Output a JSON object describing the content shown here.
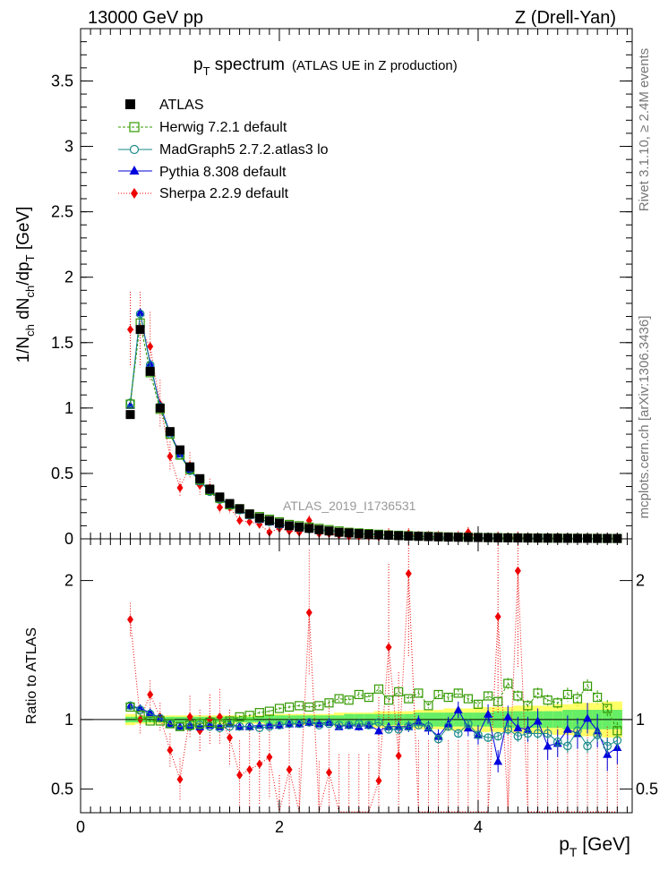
{
  "header": {
    "energy": "13000 GeV pp",
    "process": "Z (Drell-Yan)",
    "title_main": "p",
    "title_sub": "T",
    "title_rest": " spectrum",
    "title_note": "(ATLAS UE in Z production)",
    "analysis": "ATLAS_2019_I1736531",
    "rivet": "Rivet 3.1.10, ≥ 2.4M events",
    "mcplots": "mcplots.cern.ch [arXiv:1306.3436]"
  },
  "colors": {
    "atlas": "#000000",
    "herwig": "#339900",
    "madgraph": "#1a8a8a",
    "pythia": "#0000dd",
    "sherpa": "#ee0000",
    "band_inner": "#66ee66",
    "band_outer": "#ffff66"
  },
  "chart_data": [
    {
      "type": "scatter",
      "panel": "main",
      "ylabel_parts": [
        "1/N",
        "ch",
        " dN",
        "ch",
        "/dp",
        "T",
        " [GeV]"
      ],
      "xlim": [
        0,
        5.55
      ],
      "ylim": [
        0,
        3.9
      ],
      "yticks": [
        0,
        0.5,
        1,
        1.5,
        2,
        2.5,
        3,
        3.5
      ],
      "ytick_labels": [
        "0",
        "0.5",
        "1",
        "1.5",
        "2",
        "2.5",
        "3",
        "3.5"
      ],
      "x": [
        0.5,
        0.6,
        0.7,
        0.8,
        0.9,
        1.0,
        1.1,
        1.2,
        1.3,
        1.4,
        1.5,
        1.6,
        1.7,
        1.8,
        1.9,
        2.0,
        2.1,
        2.2,
        2.3,
        2.4,
        2.5,
        2.6,
        2.7,
        2.8,
        2.9,
        3.0,
        3.1,
        3.2,
        3.3,
        3.4,
        3.5,
        3.6,
        3.7,
        3.8,
        3.9,
        4.0,
        4.1,
        4.2,
        4.3,
        4.4,
        4.5,
        4.6,
        4.7,
        4.8,
        4.9,
        5.0,
        5.1,
        5.2,
        5.3,
        5.4
      ],
      "series": [
        {
          "name": "ATLAS",
          "key": "atlas",
          "values": [
            0.95,
            1.6,
            1.28,
            1.0,
            0.82,
            0.68,
            0.55,
            0.46,
            0.38,
            0.32,
            0.27,
            0.23,
            0.19,
            0.16,
            0.14,
            0.12,
            0.1,
            0.09,
            0.08,
            0.07,
            0.06,
            0.05,
            0.045,
            0.04,
            0.035,
            0.03,
            0.027,
            0.024,
            0.021,
            0.019,
            0.017,
            0.015,
            0.013,
            0.012,
            0.011,
            0.01,
            0.009,
            0.008,
            0.007,
            0.0065,
            0.006,
            0.0055,
            0.005,
            0.0045,
            0.004,
            0.0037,
            0.0034,
            0.003,
            0.0028,
            0.0025
          ]
        },
        {
          "name": "Herwig 7.2.1 default",
          "key": "herwig",
          "values": [
            1.03,
            1.65,
            1.27,
            0.99,
            0.8,
            0.64,
            0.53,
            0.45,
            0.37,
            0.31,
            0.26,
            0.23,
            0.19,
            0.17,
            0.15,
            0.13,
            0.11,
            0.1,
            0.09,
            0.08,
            0.07,
            0.06,
            0.05,
            0.045,
            0.04,
            0.035,
            0.03,
            0.027,
            0.024,
            0.021,
            0.019,
            0.017,
            0.015,
            0.014,
            0.012,
            0.011,
            0.01,
            0.009,
            0.008,
            0.0075,
            0.007,
            0.0065,
            0.006,
            0.0055,
            0.005,
            0.0045,
            0.004,
            0.0036,
            0.0032,
            0.003
          ]
        },
        {
          "name": "MadGraph5 2.7.2.atlas3 lo",
          "key": "madgraph",
          "values": [
            1.04,
            1.72,
            1.33,
            1.01,
            0.8,
            0.64,
            0.52,
            0.44,
            0.36,
            0.3,
            0.26,
            0.22,
            0.18,
            0.15,
            0.13,
            0.11,
            0.095,
            0.085,
            0.075,
            0.066,
            0.058,
            0.05,
            0.044,
            0.039,
            0.034,
            0.029,
            0.026,
            0.023,
            0.02,
            0.018,
            0.016,
            0.013,
            0.012,
            0.011,
            0.01,
            0.0095,
            0.008,
            0.007,
            0.006,
            0.0055,
            0.005,
            0.0047,
            0.0043,
            0.004,
            0.0037,
            0.0033,
            0.003,
            0.0027,
            0.0025,
            0.0022
          ]
        },
        {
          "name": "Pythia 8.308 default",
          "key": "pythia",
          "values": [
            1.02,
            1.73,
            1.34,
            1.02,
            0.81,
            0.65,
            0.53,
            0.44,
            0.37,
            0.31,
            0.26,
            0.22,
            0.18,
            0.15,
            0.13,
            0.11,
            0.1,
            0.085,
            0.077,
            0.068,
            0.06,
            0.05,
            0.045,
            0.04,
            0.034,
            0.03,
            0.027,
            0.023,
            0.02,
            0.018,
            0.016,
            0.014,
            0.012,
            0.011,
            0.01,
            0.009,
            0.008,
            0.007,
            0.006,
            0.0055,
            0.005,
            0.0047,
            0.0043,
            0.004,
            0.0037,
            0.0033,
            0.003,
            0.0027,
            0.0025,
            0.0022
          ]
        },
        {
          "name": "Sherpa 2.2.9 default",
          "key": "sherpa",
          "values": [
            1.6,
            1.6,
            1.47,
            1.03,
            0.63,
            0.39,
            0.56,
            0.41,
            0.39,
            0.24,
            0.24,
            0.14,
            0.13,
            0.11,
            0.05,
            0.08,
            0.06,
            0.05,
            0.14,
            0.04,
            0.04,
            0.03,
            0.02,
            0.02,
            0.02,
            0.015,
            0.04,
            0.02,
            0.04,
            0.02,
            0.02,
            0.02,
            0.01,
            0.02,
            0.05,
            0.01,
            0.01,
            0.015,
            0.01,
            0.015,
            0.01,
            0.005,
            0.005,
            0.005,
            0.005,
            0.005,
            0.005,
            0.005,
            0.005,
            0.005
          ]
        }
      ]
    },
    {
      "type": "scatter",
      "panel": "ratio",
      "ylabel": "Ratio to ATLAS",
      "xlabel_parts": [
        "p",
        "T",
        " [GeV]"
      ],
      "xlim": [
        0,
        5.55
      ],
      "ylim": [
        0.33,
        2.3
      ],
      "xticks": [
        0,
        2,
        4
      ],
      "xtick_labels": [
        "0",
        "2",
        "4"
      ],
      "yticks": [
        0.5,
        1,
        2
      ],
      "ytick_labels": [
        "0.5",
        "1",
        "2"
      ],
      "reference": 1,
      "x": [
        0.5,
        0.6,
        0.7,
        0.8,
        0.9,
        1.0,
        1.1,
        1.2,
        1.3,
        1.4,
        1.5,
        1.6,
        1.7,
        1.8,
        1.9,
        2.0,
        2.1,
        2.2,
        2.3,
        2.4,
        2.5,
        2.6,
        2.7,
        2.8,
        2.9,
        3.0,
        3.1,
        3.2,
        3.3,
        3.4,
        3.5,
        3.6,
        3.7,
        3.8,
        3.9,
        4.0,
        4.1,
        4.2,
        4.3,
        4.4,
        4.5,
        4.6,
        4.7,
        4.8,
        4.9,
        5.0,
        5.1,
        5.2,
        5.3,
        5.4
      ],
      "band_inner": [
        0.02,
        0.02,
        0.02,
        0.02,
        0.02,
        0.02,
        0.02,
        0.02,
        0.02,
        0.02,
        0.02,
        0.02,
        0.02,
        0.02,
        0.03,
        0.03,
        0.03,
        0.03,
        0.03,
        0.03,
        0.03,
        0.03,
        0.04,
        0.04,
        0.04,
        0.04,
        0.04,
        0.04,
        0.04,
        0.05,
        0.05,
        0.05,
        0.05,
        0.05,
        0.05,
        0.05,
        0.05,
        0.06,
        0.06,
        0.06,
        0.06,
        0.06,
        0.06,
        0.06,
        0.07,
        0.07,
        0.07,
        0.07,
        0.07,
        0.07
      ],
      "band_outer": [
        0.04,
        0.03,
        0.03,
        0.03,
        0.03,
        0.03,
        0.03,
        0.03,
        0.03,
        0.03,
        0.03,
        0.03,
        0.03,
        0.03,
        0.04,
        0.04,
        0.04,
        0.04,
        0.04,
        0.04,
        0.04,
        0.05,
        0.05,
        0.05,
        0.05,
        0.06,
        0.06,
        0.06,
        0.06,
        0.07,
        0.07,
        0.07,
        0.08,
        0.08,
        0.08,
        0.09,
        0.09,
        0.09,
        0.09,
        0.1,
        0.1,
        0.1,
        0.1,
        0.11,
        0.11,
        0.12,
        0.12,
        0.12,
        0.13,
        0.13
      ],
      "series": [
        {
          "name": "Herwig 7.2.1 default",
          "key": "herwig",
          "values": [
            1.09,
            1.03,
            0.99,
            0.99,
            0.97,
            0.95,
            0.96,
            0.97,
            0.98,
            0.97,
            0.99,
            1.02,
            1.03,
            1.05,
            1.06,
            1.08,
            1.09,
            1.1,
            1.09,
            1.1,
            1.12,
            1.15,
            1.14,
            1.18,
            1.16,
            1.22,
            1.14,
            1.2,
            1.15,
            1.19,
            1.1,
            1.18,
            1.16,
            1.19,
            1.15,
            1.11,
            1.17,
            1.13,
            1.26,
            1.17,
            1.1,
            1.19,
            1.14,
            1.12,
            1.18,
            1.15,
            1.24,
            1.16,
            1.08,
            0.92
          ],
          "errors": [
            0.01,
            0.01,
            0.01,
            0.01,
            0.01,
            0.01,
            0.01,
            0.01,
            0.01,
            0.01,
            0.01,
            0.01,
            0.01,
            0.01,
            0.01,
            0.01,
            0.01,
            0.01,
            0.01,
            0.01,
            0.02,
            0.02,
            0.02,
            0.02,
            0.02,
            0.02,
            0.02,
            0.02,
            0.02,
            0.02,
            0.02,
            0.03,
            0.03,
            0.03,
            0.03,
            0.03,
            0.03,
            0.03,
            0.04,
            0.04,
            0.04,
            0.04,
            0.04,
            0.04,
            0.05,
            0.05,
            0.05,
            0.05,
            0.06,
            0.06
          ]
        },
        {
          "name": "MadGraph5 2.7.2.atlas3 lo",
          "key": "madgraph",
          "values": [
            1.1,
            1.07,
            1.04,
            1.01,
            0.97,
            0.95,
            0.95,
            0.96,
            0.95,
            0.94,
            0.95,
            0.95,
            0.95,
            0.94,
            0.95,
            0.96,
            0.97,
            0.97,
            0.98,
            0.96,
            0.97,
            0.96,
            0.96,
            0.97,
            0.96,
            0.98,
            0.93,
            0.93,
            0.95,
            0.96,
            0.95,
            0.86,
            0.95,
            0.9,
            0.97,
            0.89,
            0.87,
            0.88,
            0.93,
            0.88,
            0.9,
            0.9,
            0.9,
            0.84,
            0.81,
            0.92,
            0.81,
            0.89,
            0.81,
            0.85
          ],
          "errors": [
            0.01,
            0.01,
            0.01,
            0.01,
            0.01,
            0.01,
            0.01,
            0.01,
            0.01,
            0.01,
            0.01,
            0.01,
            0.01,
            0.01,
            0.01,
            0.01,
            0.01,
            0.01,
            0.01,
            0.01,
            0.02,
            0.02,
            0.02,
            0.02,
            0.02,
            0.02,
            0.02,
            0.02,
            0.02,
            0.02,
            0.02,
            0.03,
            0.03,
            0.03,
            0.03,
            0.03,
            0.03,
            0.03,
            0.04,
            0.04,
            0.04,
            0.04,
            0.04,
            0.04,
            0.05,
            0.05,
            0.05,
            0.05,
            0.06,
            0.06
          ]
        },
        {
          "name": "Pythia 8.308 default",
          "key": "pythia",
          "values": [
            1.1,
            1.08,
            1.05,
            1.01,
            0.97,
            0.95,
            0.96,
            0.95,
            0.96,
            0.95,
            0.97,
            0.95,
            0.95,
            0.96,
            0.96,
            0.96,
            0.97,
            0.97,
            0.98,
            0.97,
            0.98,
            0.95,
            0.96,
            0.95,
            0.96,
            0.92,
            0.95,
            0.95,
            0.95,
            0.99,
            0.94,
            0.88,
            0.97,
            1.07,
            0.94,
            0.89,
            1.04,
            0.7,
            1.02,
            0.94,
            0.93,
            0.99,
            0.81,
            0.83,
            0.93,
            0.9,
            1.01,
            0.92,
            0.75,
            0.8
          ],
          "errors": [
            0.01,
            0.01,
            0.01,
            0.01,
            0.01,
            0.01,
            0.01,
            0.01,
            0.01,
            0.01,
            0.01,
            0.01,
            0.01,
            0.01,
            0.01,
            0.01,
            0.01,
            0.02,
            0.02,
            0.02,
            0.02,
            0.02,
            0.02,
            0.03,
            0.03,
            0.03,
            0.03,
            0.04,
            0.04,
            0.04,
            0.05,
            0.05,
            0.05,
            0.06,
            0.06,
            0.07,
            0.07,
            0.08,
            0.08,
            0.08,
            0.09,
            0.09,
            0.1,
            0.1,
            0.1,
            0.11,
            0.11,
            0.12,
            0.12,
            0.12
          ]
        },
        {
          "name": "Sherpa 2.2.9 default",
          "key": "sherpa",
          "values": [
            1.72,
            1.0,
            1.18,
            1.02,
            0.78,
            0.57,
            1.02,
            0.92,
            1.0,
            1.02,
            0.87,
            0.6,
            0.64,
            0.68,
            0.73,
            0.25,
            0.64,
            0.25,
            1.77,
            0.25,
            0.62,
            0.25,
            0.25,
            0.25,
            0.25,
            0.56,
            1.52,
            0.74,
            2.05,
            0.25,
            0.25,
            0.25,
            0.25,
            0.25,
            0.25,
            0.25,
            0.25,
            1.74,
            0.25,
            2.07,
            0.25,
            0.25,
            0.25,
            0.25,
            0.25,
            0.25,
            0.25,
            0.25,
            0.25,
            0.25
          ],
          "errors": [
            0.12,
            0.1,
            0.1,
            0.1,
            0.12,
            0.15,
            0.15,
            0.15,
            0.18,
            0.2,
            0.2,
            0.25,
            0.3,
            0.3,
            0.3,
            0.35,
            0.4,
            0.4,
            0.45,
            0.45,
            0.5,
            0.5,
            0.5,
            0.5,
            0.5,
            0.6,
            0.6,
            0.6,
            0.6,
            0.6,
            0.6,
            0.6,
            0.6,
            0.6,
            0.6,
            0.6,
            0.6,
            0.7,
            0.7,
            0.7,
            0.7,
            0.7,
            0.7,
            0.7,
            0.7,
            0.7,
            0.7,
            0.7,
            0.7,
            0.7
          ]
        }
      ]
    }
  ]
}
